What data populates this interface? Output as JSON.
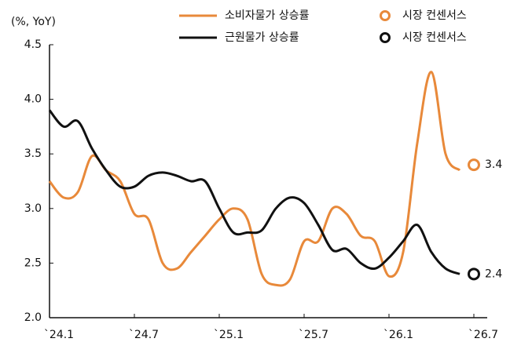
{
  "chart_data": {
    "type": "line",
    "y_label": "(%, YoY)",
    "categories": [
      "`24.1",
      null,
      null,
      null,
      null,
      null,
      "`24.7",
      null,
      null,
      null,
      null,
      null,
      "`25.1",
      null,
      null,
      null,
      null,
      null,
      "`25.7",
      null,
      null,
      null,
      null,
      null,
      "`26.1",
      null,
      null,
      null,
      null,
      null,
      "`26.7"
    ],
    "series": [
      {
        "name": "소비자물가 상승률",
        "color": "#e8893a",
        "style": "line",
        "values": [
          3.25,
          3.1,
          3.15,
          3.48,
          3.35,
          3.25,
          2.95,
          2.9,
          2.5,
          2.45,
          2.6,
          2.75,
          2.9,
          3.0,
          2.9,
          2.4,
          2.3,
          2.35,
          2.7,
          2.7,
          3.0,
          2.95,
          2.75,
          2.7,
          2.38,
          2.6,
          3.6,
          4.25,
          3.5,
          3.35,
          null
        ]
      },
      {
        "name": "근원물가 상승률",
        "color": "#111111",
        "style": "line",
        "values": [
          3.9,
          3.75,
          3.8,
          3.55,
          3.35,
          3.2,
          3.2,
          3.3,
          3.33,
          3.3,
          3.25,
          3.25,
          3.0,
          2.78,
          2.78,
          2.8,
          3.0,
          3.1,
          3.05,
          2.85,
          2.62,
          2.63,
          2.5,
          2.45,
          2.55,
          2.7,
          2.85,
          2.6,
          2.45,
          2.4,
          null
        ]
      },
      {
        "name": "시장 컨센서스",
        "color": "#e8893a",
        "style": "marker",
        "values": [
          null,
          null,
          null,
          null,
          null,
          null,
          null,
          null,
          null,
          null,
          null,
          null,
          null,
          null,
          null,
          null,
          null,
          null,
          null,
          null,
          null,
          null,
          null,
          null,
          null,
          null,
          null,
          null,
          null,
          null,
          3.4
        ]
      },
      {
        "name": "시장 컨센서스",
        "color": "#111111",
        "style": "marker",
        "values": [
          null,
          null,
          null,
          null,
          null,
          null,
          null,
          null,
          null,
          null,
          null,
          null,
          null,
          null,
          null,
          null,
          null,
          null,
          null,
          null,
          null,
          null,
          null,
          null,
          null,
          null,
          null,
          null,
          null,
          null,
          2.4
        ]
      }
    ],
    "ylim": [
      2.0,
      4.5
    ],
    "yticks": [
      {
        "value": 2.0,
        "label": "2.0"
      },
      2.5,
      {
        "value": 3.0,
        "label": "3.0"
      },
      3.5,
      {
        "value": 4.0,
        "label": "4.0"
      },
      4.5
    ],
    "grid": false
  }
}
